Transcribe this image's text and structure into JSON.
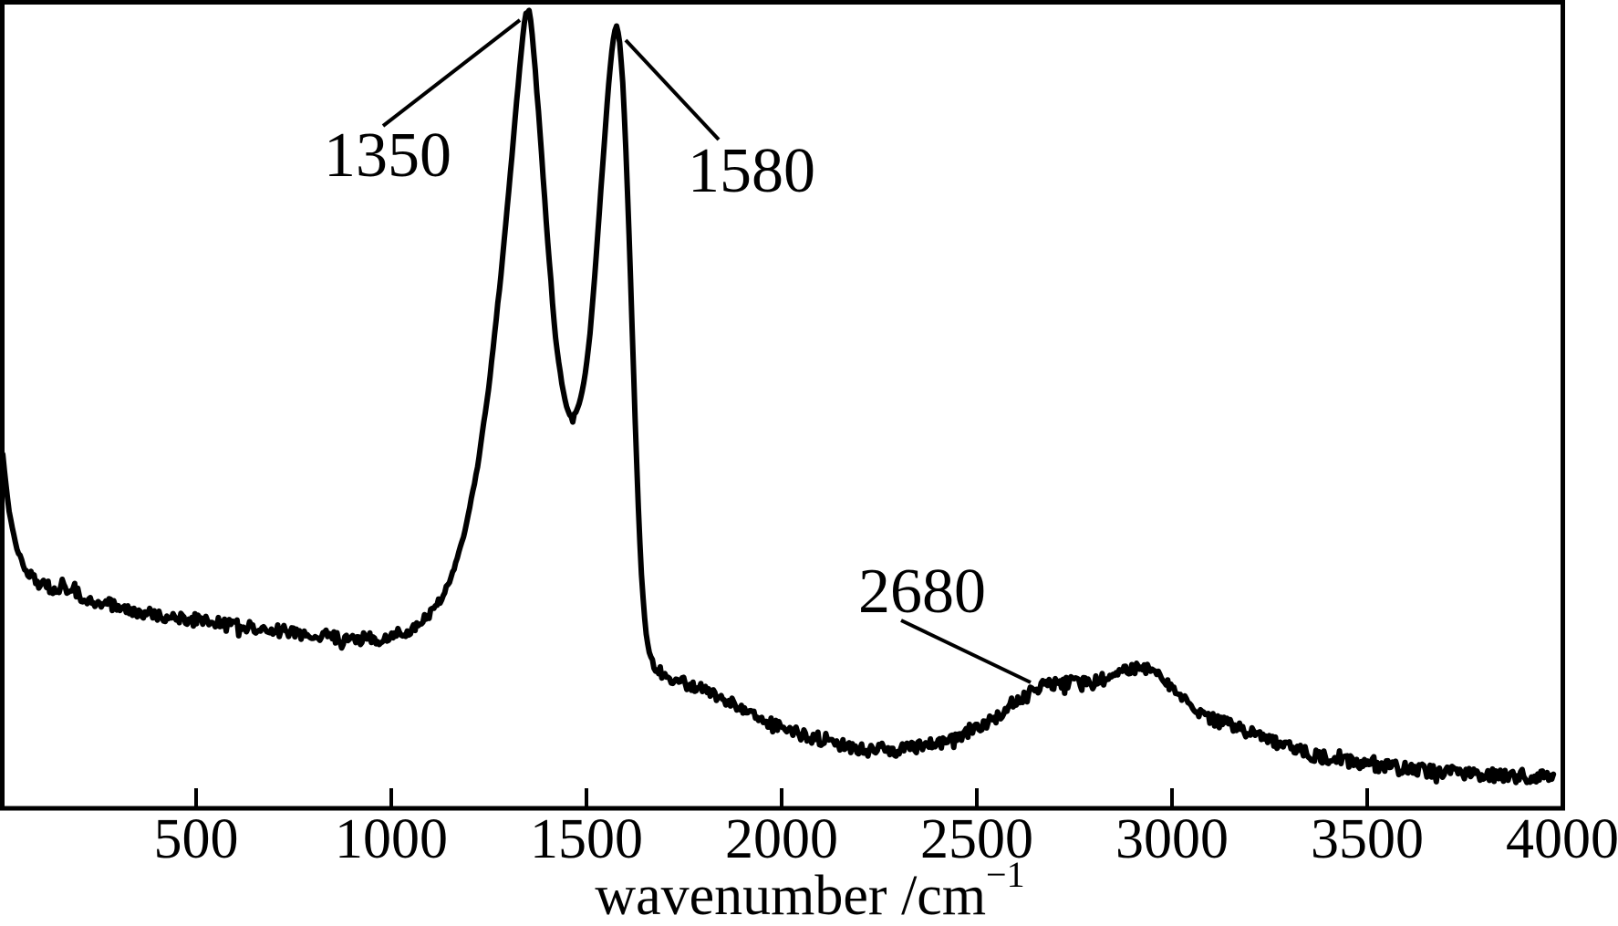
{
  "figure": {
    "background_color": "#ffffff",
    "line_color": "#000000"
  },
  "chart_data": {
    "type": "line",
    "title": "",
    "xlabel_main": "wavenumber /cm",
    "xlabel_superscript": "−1",
    "ylabel": "",
    "xlim": [
      0,
      4000
    ],
    "ylim": [
      0,
      1
    ],
    "x_ticks": [
      "500",
      "1000",
      "1500",
      "2000",
      "2500",
      "3000",
      "3500",
      "4000"
    ],
    "x_tick_values": [
      500,
      1000,
      1500,
      2000,
      2500,
      3000,
      3500,
      4000
    ],
    "y_axis_shown": false,
    "grid": false,
    "legend": "none",
    "series": [
      {
        "name": "raman-spectrum-trace",
        "points_wavenumber_intensity": [
          [
            5,
            0.437
          ],
          [
            10,
            0.414
          ],
          [
            20,
            0.369
          ],
          [
            40,
            0.323
          ],
          [
            60,
            0.299
          ],
          [
            90,
            0.281
          ],
          [
            130,
            0.273
          ],
          [
            160,
            0.276
          ],
          [
            200,
            0.265
          ],
          [
            250,
            0.256
          ],
          [
            300,
            0.249
          ],
          [
            400,
            0.241
          ],
          [
            500,
            0.233
          ],
          [
            600,
            0.226
          ],
          [
            700,
            0.221
          ],
          [
            800,
            0.215
          ],
          [
            900,
            0.21
          ],
          [
            950,
            0.209
          ],
          [
            1000,
            0.213
          ],
          [
            1050,
            0.222
          ],
          [
            1100,
            0.242
          ],
          [
            1130,
            0.261
          ],
          [
            1160,
            0.295
          ],
          [
            1190,
            0.346
          ],
          [
            1220,
            0.42
          ],
          [
            1250,
            0.522
          ],
          [
            1280,
            0.657
          ],
          [
            1300,
            0.759
          ],
          [
            1320,
            0.872
          ],
          [
            1335,
            0.948
          ],
          [
            1345,
            0.989
          ],
          [
            1350,
            0.997
          ],
          [
            1355,
            0.989
          ],
          [
            1365,
            0.94
          ],
          [
            1380,
            0.844
          ],
          [
            1400,
            0.708
          ],
          [
            1420,
            0.584
          ],
          [
            1440,
            0.516
          ],
          [
            1455,
            0.488
          ],
          [
            1465,
            0.482
          ],
          [
            1475,
            0.491
          ],
          [
            1490,
            0.516
          ],
          [
            1505,
            0.567
          ],
          [
            1520,
            0.652
          ],
          [
            1535,
            0.753
          ],
          [
            1550,
            0.855
          ],
          [
            1562,
            0.929
          ],
          [
            1572,
            0.966
          ],
          [
            1580,
            0.971
          ],
          [
            1588,
            0.94
          ],
          [
            1597,
            0.867
          ],
          [
            1607,
            0.742
          ],
          [
            1617,
            0.595
          ],
          [
            1627,
            0.448
          ],
          [
            1637,
            0.324
          ],
          [
            1647,
            0.242
          ],
          [
            1657,
            0.199
          ],
          [
            1670,
            0.179
          ],
          [
            1690,
            0.169
          ],
          [
            1720,
            0.161
          ],
          [
            1760,
            0.154
          ],
          [
            1800,
            0.146
          ],
          [
            1850,
            0.136
          ],
          [
            1900,
            0.123
          ],
          [
            1950,
            0.11
          ],
          [
            2000,
            0.101
          ],
          [
            2050,
            0.092
          ],
          [
            2100,
            0.084
          ],
          [
            2150,
            0.078
          ],
          [
            2200,
            0.074
          ],
          [
            2250,
            0.071
          ],
          [
            2300,
            0.072
          ],
          [
            2350,
            0.076
          ],
          [
            2400,
            0.08
          ],
          [
            2450,
            0.088
          ],
          [
            2500,
            0.1
          ],
          [
            2550,
            0.113
          ],
          [
            2600,
            0.131
          ],
          [
            2640,
            0.145
          ],
          [
            2680,
            0.154
          ],
          [
            2720,
            0.156
          ],
          [
            2760,
            0.154
          ],
          [
            2800,
            0.156
          ],
          [
            2840,
            0.163
          ],
          [
            2880,
            0.171
          ],
          [
            2920,
            0.176
          ],
          [
            2950,
            0.173
          ],
          [
            2980,
            0.16
          ],
          [
            3010,
            0.143
          ],
          [
            3050,
            0.126
          ],
          [
            3100,
            0.111
          ],
          [
            3150,
            0.103
          ],
          [
            3200,
            0.094
          ],
          [
            3250,
            0.084
          ],
          [
            3300,
            0.075
          ],
          [
            3350,
            0.068
          ],
          [
            3400,
            0.062
          ],
          [
            3500,
            0.054
          ],
          [
            3600,
            0.049
          ],
          [
            3700,
            0.045
          ],
          [
            3800,
            0.042
          ],
          [
            3900,
            0.04
          ],
          [
            3980,
            0.038
          ]
        ]
      }
    ],
    "annotations": [
      {
        "label": "1350",
        "peak_wavenumber": 1350
      },
      {
        "label": "1580",
        "peak_wavenumber": 1580
      },
      {
        "label": "2680",
        "peak_wavenumber": 2680
      }
    ],
    "noise": {
      "seed": 7,
      "base_amplitude": 7.5,
      "step_wavenumber": 4
    }
  }
}
